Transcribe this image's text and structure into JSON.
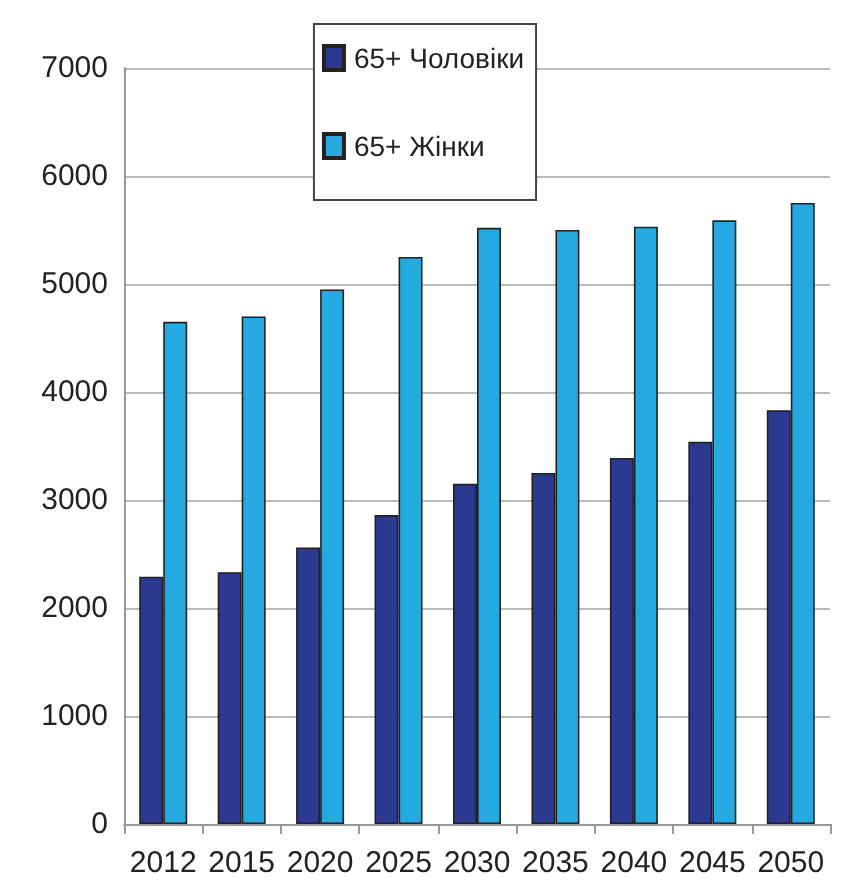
{
  "chart_data": {
    "type": "bar",
    "categories": [
      "2012",
      "2015",
      "2020",
      "2025",
      "2030",
      "2035",
      "2040",
      "2045",
      "2050"
    ],
    "series": [
      {
        "name": "65+ Чоловіки",
        "color": "#2b3990",
        "values": [
          2290,
          2330,
          2560,
          2860,
          3150,
          3250,
          3390,
          3540,
          3830
        ]
      },
      {
        "name": "65+ Жінки",
        "color": "#24a9e0",
        "values": [
          4650,
          4700,
          4950,
          5250,
          5520,
          5500,
          5530,
          5590,
          5750
        ]
      }
    ],
    "ylim": [
      0,
      7000
    ],
    "yticks": [
      0,
      1000,
      2000,
      3000,
      4000,
      5000,
      6000,
      7000
    ],
    "grid": "y",
    "legend": "top"
  }
}
